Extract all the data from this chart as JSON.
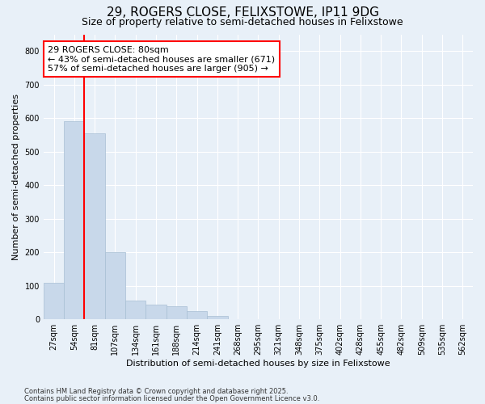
{
  "title1": "29, ROGERS CLOSE, FELIXSTOWE, IP11 9DG",
  "title2": "Size of property relative to semi-detached houses in Felixstowe",
  "xlabel": "Distribution of semi-detached houses by size in Felixstowe",
  "ylabel": "Number of semi-detached properties",
  "categories": [
    "27sqm",
    "54sqm",
    "81sqm",
    "107sqm",
    "134sqm",
    "161sqm",
    "188sqm",
    "214sqm",
    "241sqm",
    "268sqm",
    "295sqm",
    "321sqm",
    "348sqm",
    "375sqm",
    "402sqm",
    "428sqm",
    "455sqm",
    "482sqm",
    "509sqm",
    "535sqm",
    "562sqm"
  ],
  "values": [
    110,
    590,
    555,
    200,
    55,
    45,
    40,
    25,
    10,
    0,
    0,
    0,
    0,
    0,
    0,
    0,
    0,
    0,
    0,
    0,
    0
  ],
  "bar_color": "#c8d8ea",
  "bar_edge_color": "#a8bfd4",
  "red_line_x": 1.5,
  "annotation_text": "29 ROGERS CLOSE: 80sqm\n← 43% of semi-detached houses are smaller (671)\n57% of semi-detached houses are larger (905) →",
  "annotation_box_color": "white",
  "annotation_box_edge_color": "red",
  "red_line_color": "red",
  "ylim": [
    0,
    850
  ],
  "yticks": [
    0,
    100,
    200,
    300,
    400,
    500,
    600,
    700,
    800
  ],
  "footer1": "Contains HM Land Registry data © Crown copyright and database right 2025.",
  "footer2": "Contains public sector information licensed under the Open Government Licence v3.0.",
  "bg_color": "#e8f0f8",
  "plot_bg_color": "#e8f0f8",
  "grid_color": "white",
  "title1_fontsize": 11,
  "title2_fontsize": 9,
  "annot_fontsize": 8,
  "tick_fontsize": 7,
  "ylabel_fontsize": 8,
  "xlabel_fontsize": 8,
  "footer_fontsize": 6
}
